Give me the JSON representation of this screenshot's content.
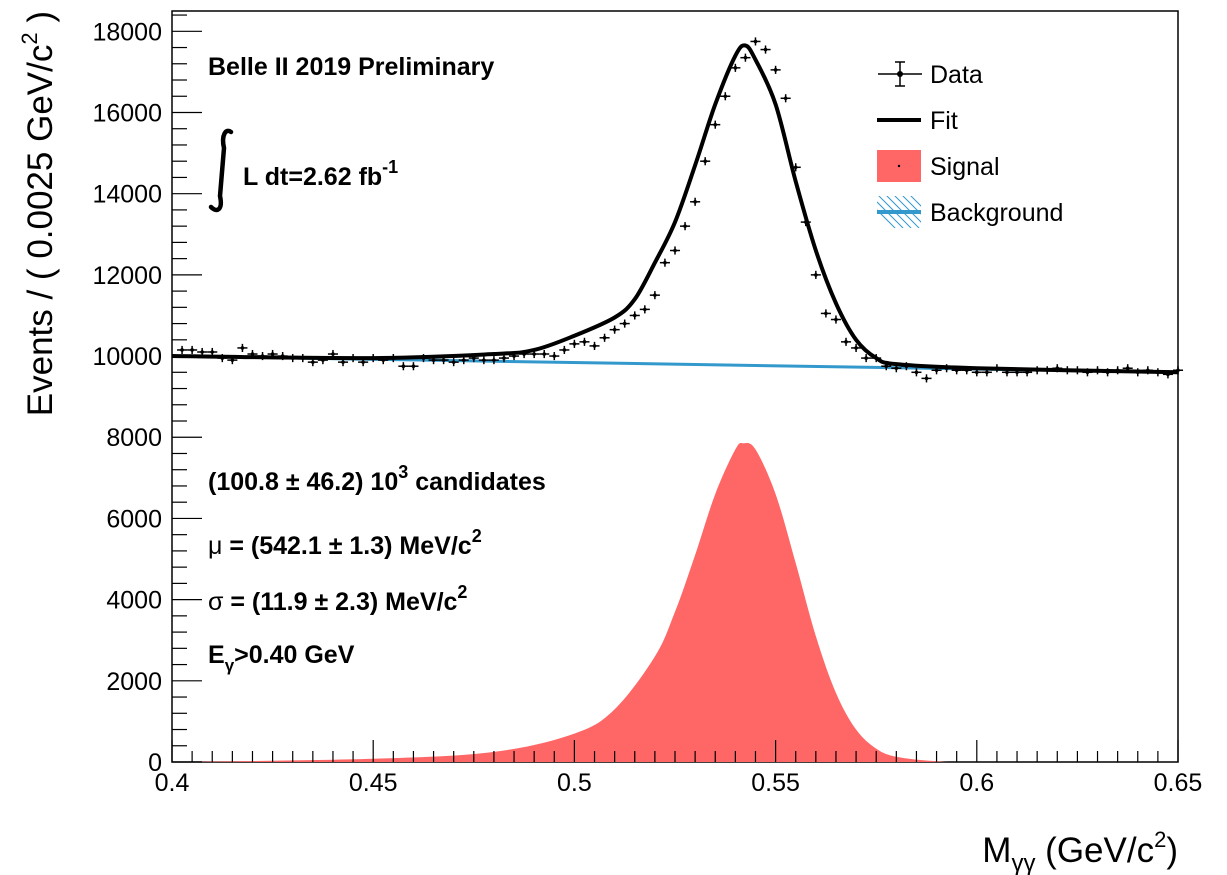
{
  "chart_data": {
    "type": "line",
    "title": "Belle II 2019 Preliminary",
    "xlabel": {
      "main": "M",
      "sub": "γγ",
      "unit_prefix": " (GeV/c",
      "unit_sup": "2",
      "unit_suffix": ")"
    },
    "ylabel": {
      "prefix": "Events / ( 0.0025 GeV/c",
      "sup": "2",
      "suffix": " )"
    },
    "xlim": [
      0.4,
      0.65
    ],
    "ylim": [
      0,
      18500
    ],
    "x_ticks": [
      0.4,
      0.45,
      0.5,
      0.55,
      0.6,
      0.65
    ],
    "x_tick_labels": [
      "0.4",
      "0.45",
      "0.5",
      "0.55",
      "0.6",
      "0.65"
    ],
    "y_ticks": [
      0,
      2000,
      4000,
      6000,
      8000,
      10000,
      12000,
      14000,
      16000,
      18000
    ],
    "y_tick_labels": [
      "0",
      "2000",
      "4000",
      "6000",
      "8000",
      "10000",
      "12000",
      "14000",
      "16000",
      "18000"
    ],
    "grid": false,
    "legend_position": "top-right",
    "legend": [
      {
        "key": "data",
        "label": "Data"
      },
      {
        "key": "fit",
        "label": "Fit"
      },
      {
        "key": "signal",
        "label": "Signal"
      },
      {
        "key": "background",
        "label": "Background"
      }
    ],
    "annotations": {
      "lumi_prefix": "L dt=2.62 fb",
      "lumi_sup": "-1",
      "candidates_prefix": "(100.8 ± 46.2) 10",
      "candidates_sup": "3",
      "candidates_suffix": " candidates",
      "mu_symbol": "μ",
      "mu_text": " = (542.1 ± 1.3) MeV/c",
      "mu_sup": "2",
      "sigma_symbol": "σ",
      "sigma_text": " = (11.9 ± 2.3) MeV/c",
      "sigma_sup": "2",
      "egamma_main": "E",
      "egamma_sub": "γ",
      "egamma_suffix": ">0.40 GeV"
    },
    "colors": {
      "data": "#000000",
      "fit": "#000000",
      "signal": "#ff6666",
      "background": "#3399cc"
    },
    "background_line": {
      "x": [
        0.4,
        0.65
      ],
      "y": [
        10000,
        9600
      ]
    },
    "signal_curve": {
      "x": [
        0.4,
        0.45,
        0.48,
        0.5,
        0.51,
        0.52,
        0.525,
        0.53,
        0.535,
        0.54,
        0.542,
        0.545,
        0.55,
        0.555,
        0.56,
        0.565,
        0.57,
        0.575,
        0.58,
        0.59,
        0.6,
        0.65
      ],
      "y": [
        0,
        80,
        250,
        700,
        1300,
        2600,
        3700,
        5100,
        6600,
        7700,
        7850,
        7700,
        6600,
        4900,
        3100,
        1700,
        800,
        330,
        130,
        20,
        0,
        0
      ]
    },
    "fit_curve": {
      "x": [
        0.4,
        0.45,
        0.48,
        0.49,
        0.5,
        0.51,
        0.515,
        0.52,
        0.525,
        0.53,
        0.535,
        0.54,
        0.5425,
        0.545,
        0.55,
        0.555,
        0.56,
        0.565,
        0.57,
        0.575,
        0.58,
        0.6,
        0.65
      ],
      "y": [
        10000,
        9950,
        10050,
        10150,
        10500,
        10950,
        11400,
        12300,
        13300,
        14700,
        16200,
        17400,
        17650,
        17300,
        16200,
        14300,
        12600,
        11300,
        10400,
        9950,
        9800,
        9700,
        9600
      ]
    },
    "data_points": {
      "x": [
        0.4025,
        0.405,
        0.4075,
        0.41,
        0.4125,
        0.415,
        0.4175,
        0.42,
        0.4225,
        0.425,
        0.4275,
        0.43,
        0.4325,
        0.435,
        0.4375,
        0.44,
        0.4425,
        0.445,
        0.4475,
        0.45,
        0.4525,
        0.455,
        0.4575,
        0.46,
        0.4625,
        0.465,
        0.4675,
        0.47,
        0.4725,
        0.475,
        0.4775,
        0.48,
        0.4825,
        0.485,
        0.4875,
        0.49,
        0.4925,
        0.495,
        0.4975,
        0.5,
        0.5025,
        0.505,
        0.5075,
        0.51,
        0.5125,
        0.515,
        0.5175,
        0.52,
        0.5225,
        0.525,
        0.5275,
        0.53,
        0.5325,
        0.535,
        0.5375,
        0.54,
        0.5425,
        0.545,
        0.5475,
        0.55,
        0.5525,
        0.555,
        0.5575,
        0.56,
        0.5625,
        0.565,
        0.5675,
        0.57,
        0.5725,
        0.575,
        0.5775,
        0.58,
        0.5825,
        0.585,
        0.5875,
        0.59,
        0.5925,
        0.595,
        0.5975,
        0.6,
        0.6025,
        0.605,
        0.6075,
        0.61,
        0.6125,
        0.615,
        0.6175,
        0.62,
        0.6225,
        0.625,
        0.6275,
        0.63,
        0.6325,
        0.635,
        0.6375,
        0.64,
        0.6425,
        0.645,
        0.6475,
        0.65
      ],
      "y": [
        10150,
        10150,
        10100,
        10100,
        9950,
        9900,
        10200,
        10050,
        10000,
        10050,
        10000,
        9950,
        9950,
        9850,
        9900,
        10050,
        9850,
        9950,
        9850,
        9950,
        9900,
        9950,
        9750,
        9750,
        9950,
        9900,
        9900,
        9850,
        9900,
        9950,
        9900,
        9900,
        9950,
        10000,
        10050,
        10050,
        10050,
        10000,
        10150,
        10300,
        10350,
        10250,
        10450,
        10650,
        10800,
        11000,
        11150,
        11500,
        12300,
        12600,
        13200,
        13800,
        14800,
        15700,
        16400,
        17100,
        17350,
        17750,
        17550,
        17050,
        16350,
        14650,
        13300,
        12000,
        11050,
        10900,
        10350,
        10200,
        9950,
        9950,
        9750,
        9700,
        9750,
        9600,
        9450,
        9650,
        9700,
        9650,
        9650,
        9600,
        9600,
        9700,
        9600,
        9600,
        9600,
        9650,
        9650,
        9700,
        9650,
        9650,
        9600,
        9650,
        9600,
        9650,
        9700,
        9600,
        9650,
        9600,
        9550,
        9650
      ],
      "yerr": 100,
      "xerr": 0.00125
    }
  }
}
